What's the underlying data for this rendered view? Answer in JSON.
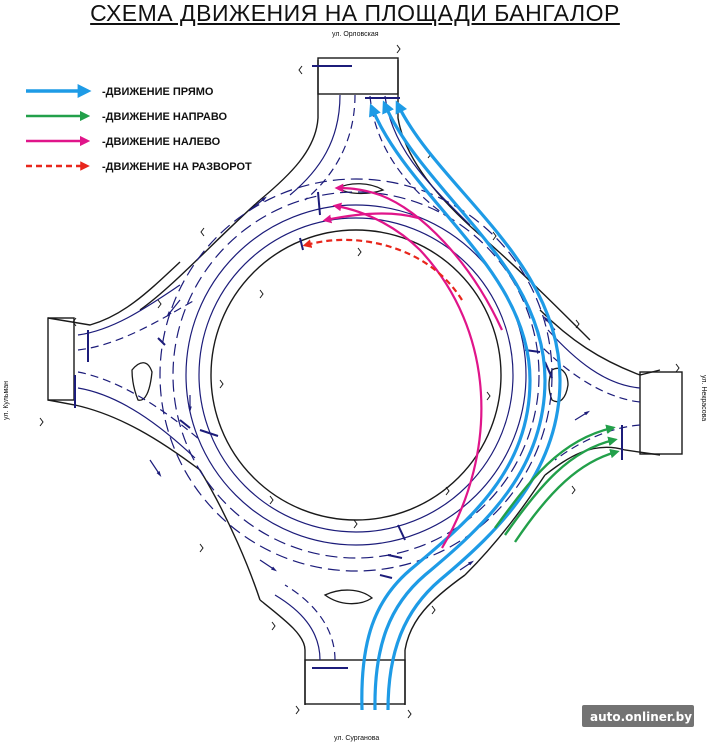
{
  "title": "СХЕМА ДВИЖЕНИЯ НА ПЛОЩАДИ БАНГАЛОР",
  "legend": [
    {
      "label": "-ДВИЖЕНИЕ ПРЯМО",
      "color": "#1e9be6",
      "style": "solid"
    },
    {
      "label": "-ДВИЖЕНИЕ НАПРАВО",
      "color": "#22a04a",
      "style": "solid"
    },
    {
      "label": "-ДВИЖЕНИЕ НАЛЕВО",
      "color": "#e0158a",
      "style": "solid"
    },
    {
      "label": "-ДВИЖЕНИЕ НА РАЗВОРОТ",
      "color": "#e8261c",
      "style": "dashed"
    }
  ],
  "streets": {
    "north": "ул. Орловская",
    "south": "ул. Сурганова",
    "west": "ул. Кульман",
    "east": "ул. Некрасова"
  },
  "watermark": "auto.onliner.by",
  "colors": {
    "road_outline": "#1a1a1a",
    "lane_marking": "#1c1c7a",
    "straight": "#1e9be6",
    "right": "#22a04a",
    "left": "#e0158a",
    "uturn": "#e8261c"
  }
}
